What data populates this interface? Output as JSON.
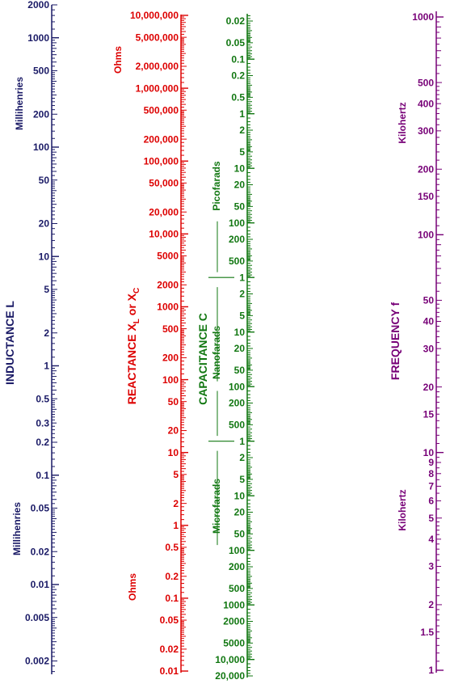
{
  "colors": {
    "inductance": "#1a1a66",
    "reactance": "#dd0000",
    "capacitance": "#117711",
    "frequency": "#770077"
  },
  "inductance": {
    "title": "INDUCTANCE  L",
    "unit_top": "Millihenries",
    "unit_bottom": "Millihenries",
    "range": [
      0.0014,
      2000
    ],
    "labels": [
      {
        "value": 2000,
        "text": "2000"
      },
      {
        "value": 1000,
        "text": "1000"
      },
      {
        "value": 500,
        "text": "500"
      },
      {
        "value": 200,
        "text": "200"
      },
      {
        "value": 100,
        "text": "100"
      },
      {
        "value": 50,
        "text": "50"
      },
      {
        "value": 20,
        "text": "20"
      },
      {
        "value": 10,
        "text": "10"
      },
      {
        "value": 5,
        "text": "5"
      },
      {
        "value": 2,
        "text": "2"
      },
      {
        "value": 1,
        "text": "1"
      },
      {
        "value": 0.5,
        "text": "0.5"
      },
      {
        "value": 0.3,
        "text": "0.3"
      },
      {
        "value": 0.2,
        "text": "0.2"
      },
      {
        "value": 0.1,
        "text": "0.1"
      },
      {
        "value": 0.05,
        "text": "0.05"
      },
      {
        "value": 0.02,
        "text": "0.02"
      },
      {
        "value": 0.01,
        "text": "0.01"
      },
      {
        "value": 0.005,
        "text": "0.005"
      },
      {
        "value": 0.002,
        "text": "0.002"
      }
    ]
  },
  "reactance": {
    "title_main": "REACTANCE  X",
    "title_sub1": "L",
    "title_or": " or  X",
    "title_sub2": "C",
    "unit_top": "Ohms",
    "unit_bottom": "Ohms",
    "range": [
      0.01,
      10000000
    ],
    "labels": [
      {
        "value": 10000000,
        "text": "10,000,000"
      },
      {
        "value": 5000000,
        "text": "5,000,000"
      },
      {
        "value": 2000000,
        "text": "2,000,000"
      },
      {
        "value": 1000000,
        "text": "1,000,000"
      },
      {
        "value": 500000,
        "text": "500,000"
      },
      {
        "value": 200000,
        "text": "200,000"
      },
      {
        "value": 100000,
        "text": "100,000"
      },
      {
        "value": 50000,
        "text": "50,000"
      },
      {
        "value": 20000,
        "text": "20,000"
      },
      {
        "value": 10000,
        "text": "10,000"
      },
      {
        "value": 5000,
        "text": "5000"
      },
      {
        "value": 2000,
        "text": "2000"
      },
      {
        "value": 1000,
        "text": "1000"
      },
      {
        "value": 500,
        "text": "500"
      },
      {
        "value": 200,
        "text": "200"
      },
      {
        "value": 100,
        "text": "100"
      },
      {
        "value": 50,
        "text": "50"
      },
      {
        "value": 20,
        "text": "20"
      },
      {
        "value": 10,
        "text": "10"
      },
      {
        "value": 5,
        "text": "5"
      },
      {
        "value": 2,
        "text": "2"
      },
      {
        "value": 1,
        "text": "1"
      },
      {
        "value": 0.5,
        "text": "0.5"
      },
      {
        "value": 0.2,
        "text": "0.2"
      },
      {
        "value": 0.1,
        "text": "0.1"
      },
      {
        "value": 0.05,
        "text": "0.05"
      },
      {
        "value": 0.02,
        "text": "0.02"
      },
      {
        "value": 0.01,
        "text": "0.01"
      }
    ]
  },
  "capacitance": {
    "title": "CAPACITANCE  C",
    "unit_pico": "Picofarads",
    "unit_nano": "Nanofarads",
    "unit_micro": "Microfarads",
    "range_pf": [
      0.015,
      20000000
    ],
    "labels": [
      {
        "value_pf": 0.02,
        "text": "0.02"
      },
      {
        "value_pf": 0.05,
        "text": "0.05"
      },
      {
        "value_pf": 0.1,
        "text": "0.1"
      },
      {
        "value_pf": 0.2,
        "text": "0.2"
      },
      {
        "value_pf": 0.5,
        "text": "0.5"
      },
      {
        "value_pf": 1,
        "text": "1"
      },
      {
        "value_pf": 2,
        "text": "2"
      },
      {
        "value_pf": 5,
        "text": "5"
      },
      {
        "value_pf": 10,
        "text": "10"
      },
      {
        "value_pf": 20,
        "text": "20"
      },
      {
        "value_pf": 50,
        "text": "50"
      },
      {
        "value_pf": 100,
        "text": "100"
      },
      {
        "value_pf": 200,
        "text": "200"
      },
      {
        "value_pf": 500,
        "text": "500"
      },
      {
        "value_pf": 1000,
        "text": "1"
      },
      {
        "value_pf": 2000,
        "text": "2"
      },
      {
        "value_pf": 5000,
        "text": "5"
      },
      {
        "value_pf": 10000,
        "text": "10"
      },
      {
        "value_pf": 20000,
        "text": "20"
      },
      {
        "value_pf": 50000,
        "text": "50"
      },
      {
        "value_pf": 100000,
        "text": "100"
      },
      {
        "value_pf": 200000,
        "text": "200"
      },
      {
        "value_pf": 500000,
        "text": "500"
      },
      {
        "value_pf": 1000000,
        "text": "1"
      },
      {
        "value_pf": 2000000,
        "text": "2"
      },
      {
        "value_pf": 5000000,
        "text": "5"
      },
      {
        "value_pf": 10000000,
        "text": "10"
      },
      {
        "value_pf": 20000000,
        "text": "20"
      },
      {
        "value_pf": 50000000,
        "text": "50"
      },
      {
        "value_pf": 100000000,
        "text": "100"
      },
      {
        "value_pf": 200000000,
        "text": "200"
      },
      {
        "value_pf": 500000000,
        "text": "500"
      },
      {
        "value_pf": 1000000000,
        "text": "1000"
      },
      {
        "value_pf": 2000000000,
        "text": "2000"
      },
      {
        "value_pf": 5000000000,
        "text": "5000"
      },
      {
        "value_pf": 10000000000,
        "text": "10,000"
      },
      {
        "value_pf": 20000000000,
        "text": "20,000"
      }
    ]
  },
  "frequency": {
    "title": "FREQUENCY  f",
    "unit_top": "Kilohertz",
    "unit_bottom": "Kilohertz",
    "range": [
      1,
      1000
    ],
    "labels": [
      {
        "value": 1000,
        "text": "1000"
      },
      {
        "value": 500,
        "text": "500"
      },
      {
        "value": 400,
        "text": "400"
      },
      {
        "value": 300,
        "text": "300"
      },
      {
        "value": 200,
        "text": "200"
      },
      {
        "value": 150,
        "text": "150"
      },
      {
        "value": 100,
        "text": "100"
      },
      {
        "value": 50,
        "text": "50"
      },
      {
        "value": 40,
        "text": "40"
      },
      {
        "value": 30,
        "text": "30"
      },
      {
        "value": 20,
        "text": "20"
      },
      {
        "value": 15,
        "text": "15"
      },
      {
        "value": 10,
        "text": "10"
      },
      {
        "value": 9,
        "text": "9"
      },
      {
        "value": 8,
        "text": "8"
      },
      {
        "value": 7,
        "text": "7"
      },
      {
        "value": 6,
        "text": "6"
      },
      {
        "value": 5,
        "text": "5"
      },
      {
        "value": 4,
        "text": "4"
      },
      {
        "value": 3,
        "text": "3"
      },
      {
        "value": 2,
        "text": "2"
      },
      {
        "value": 1.5,
        "text": "1.5"
      },
      {
        "value": 1,
        "text": "1"
      }
    ]
  }
}
